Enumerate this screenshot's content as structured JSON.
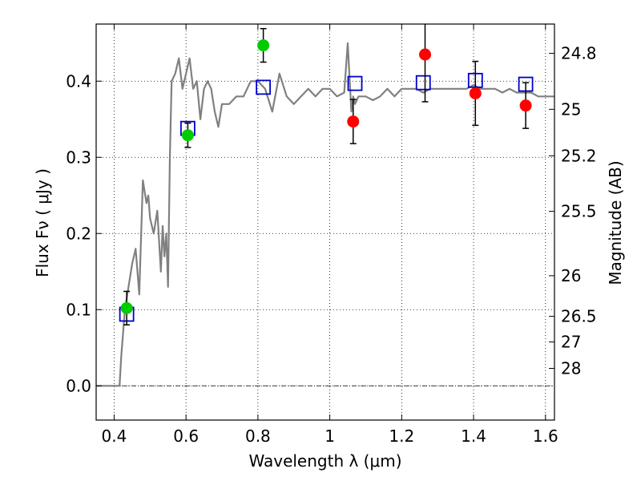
{
  "chart_data": {
    "type": "scatter",
    "xlabel": "Wavelength  λ (μm)",
    "ylabel": "Flux  Fν  ( μJy )",
    "y2label": "Magnitude (AB)",
    "xlim": [
      0.35,
      1.625
    ],
    "ylim": [
      -0.045,
      0.475
    ],
    "grid": true,
    "x_ticks": [
      0.4,
      0.6,
      0.8,
      1.0,
      1.2,
      1.4,
      1.6
    ],
    "x_tick_labels": [
      "0.4",
      "0.6",
      "0.8",
      "1",
      "1.2",
      "1.4",
      "1.6"
    ],
    "y_ticks": [
      0.0,
      0.1,
      0.2,
      0.3,
      0.4
    ],
    "y_tick_labels": [
      "0.0",
      "0.1",
      "0.2",
      "0.3",
      "0.4"
    ],
    "mag_ticks": [
      24.8,
      25,
      25.2,
      25.5,
      26,
      26.5,
      27,
      28
    ],
    "mag_tick_labels": [
      "24.8",
      "25",
      "25.2",
      "25.5",
      "26",
      "26.5",
      "27",
      "28"
    ],
    "zero_line": 0.0,
    "series": [
      {
        "kind": "line",
        "color": "#808080",
        "x": [
          0.35,
          0.41,
          0.415,
          0.42,
          0.43,
          0.44,
          0.45,
          0.46,
          0.47,
          0.48,
          0.49,
          0.495,
          0.5,
          0.51,
          0.52,
          0.53,
          0.535,
          0.54,
          0.545,
          0.55,
          0.555,
          0.56,
          0.57,
          0.58,
          0.59,
          0.6,
          0.61,
          0.62,
          0.63,
          0.64,
          0.65,
          0.66,
          0.67,
          0.68,
          0.69,
          0.7,
          0.72,
          0.74,
          0.76,
          0.78,
          0.8,
          0.82,
          0.84,
          0.86,
          0.88,
          0.9,
          0.92,
          0.94,
          0.96,
          0.98,
          1.0,
          1.02,
          1.04,
          1.05,
          1.06,
          1.065,
          1.07,
          1.08,
          1.1,
          1.12,
          1.14,
          1.16,
          1.18,
          1.2,
          1.22,
          1.24,
          1.26,
          1.28,
          1.3,
          1.32,
          1.34,
          1.36,
          1.38,
          1.4,
          1.42,
          1.44,
          1.46,
          1.48,
          1.5,
          1.52,
          1.54,
          1.56,
          1.58,
          1.6,
          1.625
        ],
        "y": [
          0.0,
          0.0,
          0.0,
          0.04,
          0.1,
          0.13,
          0.16,
          0.18,
          0.12,
          0.27,
          0.24,
          0.25,
          0.22,
          0.2,
          0.23,
          0.15,
          0.21,
          0.17,
          0.2,
          0.13,
          0.3,
          0.4,
          0.41,
          0.43,
          0.39,
          0.41,
          0.43,
          0.39,
          0.4,
          0.35,
          0.39,
          0.4,
          0.39,
          0.36,
          0.34,
          0.37,
          0.37,
          0.38,
          0.38,
          0.4,
          0.4,
          0.39,
          0.36,
          0.41,
          0.38,
          0.37,
          0.38,
          0.39,
          0.38,
          0.39,
          0.39,
          0.38,
          0.385,
          0.45,
          0.36,
          0.38,
          0.37,
          0.38,
          0.38,
          0.375,
          0.38,
          0.39,
          0.38,
          0.39,
          0.39,
          0.39,
          0.385,
          0.39,
          0.39,
          0.39,
          0.39,
          0.39,
          0.39,
          0.395,
          0.39,
          0.39,
          0.39,
          0.385,
          0.39,
          0.385,
          0.385,
          0.385,
          0.38,
          0.38,
          0.38
        ]
      },
      {
        "kind": "points",
        "marker": "open-square",
        "color": "#0000cc",
        "x": [
          0.435,
          0.605,
          0.815,
          1.07,
          1.26,
          1.405,
          1.545
        ],
        "y": [
          0.094,
          0.338,
          0.392,
          0.397,
          0.398,
          0.401,
          0.396
        ]
      },
      {
        "kind": "points",
        "marker": "circle",
        "color": "#00cc00",
        "x": [
          0.435,
          0.605,
          0.815
        ],
        "y": [
          0.102,
          0.329,
          0.447
        ],
        "yerr": [
          0.022,
          0.016,
          0.022
        ]
      },
      {
        "kind": "points",
        "marker": "circle",
        "color": "#ff0000",
        "x": [
          1.065,
          1.265,
          1.405,
          1.545
        ],
        "y": [
          0.347,
          0.435,
          0.384,
          0.368
        ],
        "yerr": [
          0.029,
          0.062,
          0.042,
          0.03
        ]
      }
    ]
  }
}
